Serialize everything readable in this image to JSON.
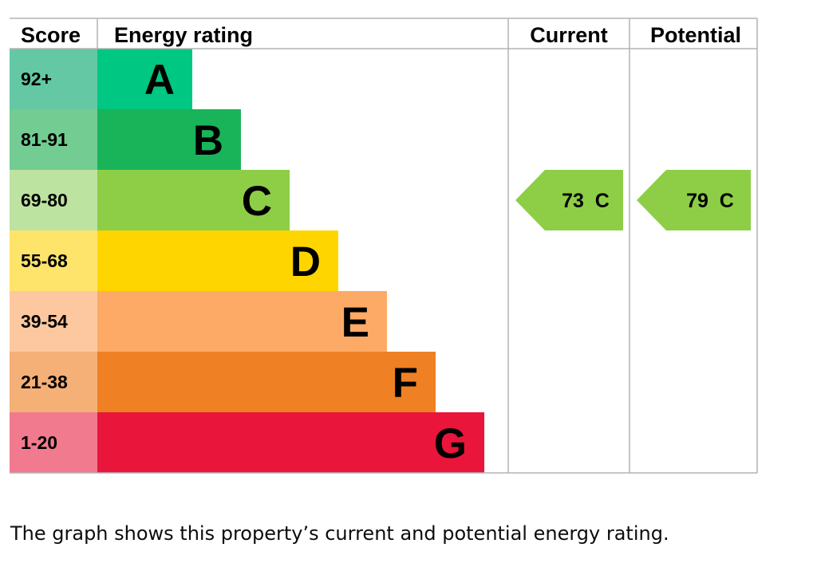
{
  "chart_data": {
    "type": "bar",
    "headers": {
      "score": "Score",
      "rating": "Energy rating",
      "current": "Current",
      "potential": "Potential"
    },
    "bands": [
      {
        "letter": "A",
        "score": "92+",
        "color": "#00c781",
        "score_bg": "#64c8a5"
      },
      {
        "letter": "B",
        "score": "81-91",
        "color": "#19b459",
        "score_bg": "#73cc91"
      },
      {
        "letter": "C",
        "score": "69-80",
        "color": "#8dce46",
        "score_bg": "#bce3a0"
      },
      {
        "letter": "D",
        "score": "55-68",
        "color": "#ffd500",
        "score_bg": "#ffe46b"
      },
      {
        "letter": "E",
        "score": "39-54",
        "color": "#fcaa65",
        "score_bg": "#fdc8a0"
      },
      {
        "letter": "F",
        "score": "21-38",
        "color": "#ef8023",
        "score_bg": "#f5b078"
      },
      {
        "letter": "G",
        "score": "1-20",
        "color": "#e9153b",
        "score_bg": "#f27a8f"
      }
    ],
    "current": {
      "value": 73,
      "band": "C",
      "label": "73  C",
      "color": "#8dce46"
    },
    "potential": {
      "value": 79,
      "band": "C",
      "label": "79  C",
      "color": "#8dce46"
    }
  },
  "caption": "The graph shows this property’s current and potential energy rating."
}
